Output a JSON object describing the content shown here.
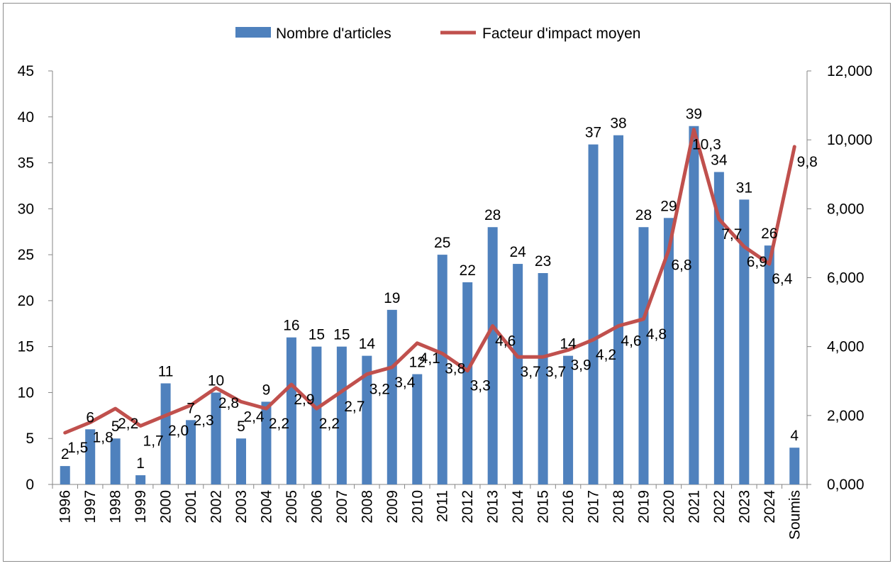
{
  "chart_data": {
    "type": "bar",
    "categories": [
      "1996",
      "1997",
      "1998",
      "1999",
      "2000",
      "2001",
      "2002",
      "2003",
      "2004",
      "2005",
      "2006",
      "2007",
      "2008",
      "2009",
      "2010",
      "2011",
      "2012",
      "2013",
      "2014",
      "2015",
      "2016",
      "2017",
      "2018",
      "2019",
      "2020",
      "2021",
      "2022",
      "2023",
      "2024",
      "Soumis"
    ],
    "series": [
      {
        "name": "Nombre d'articles",
        "type": "bar",
        "axis": "left",
        "color": "#4F81BD",
        "values": [
          2,
          6,
          5,
          1,
          11,
          7,
          10,
          5,
          9,
          16,
          15,
          15,
          14,
          19,
          12,
          25,
          22,
          28,
          24,
          23,
          14,
          37,
          38,
          28,
          29,
          39,
          34,
          31,
          26,
          4
        ],
        "labels": [
          "2",
          "6",
          "5",
          "1",
          "11",
          "7",
          "10",
          "5",
          "9",
          "16",
          "15",
          "15",
          "14",
          "19",
          "12",
          "25",
          "22",
          "28",
          "24",
          "23",
          "14",
          "37",
          "38",
          "28",
          "29",
          "39",
          "34",
          "31",
          "26",
          "4"
        ]
      },
      {
        "name": "Facteur d'impact moyen",
        "type": "line",
        "axis": "right",
        "color": "#C0504D",
        "values": [
          1.5,
          1.8,
          2.2,
          1.7,
          2.0,
          2.3,
          2.8,
          2.4,
          2.2,
          2.9,
          2.2,
          2.7,
          3.2,
          3.4,
          4.1,
          3.8,
          3.3,
          4.6,
          3.7,
          3.7,
          3.9,
          4.2,
          4.6,
          4.8,
          6.8,
          10.3,
          7.7,
          6.9,
          6.4,
          9.8
        ],
        "labels": [
          "1,5",
          "1,8",
          "2,2",
          "1,7",
          "2,0",
          "2,3",
          "2,8",
          "2,4",
          "2,2",
          "2,9",
          "2,2",
          "2,7",
          "3,2",
          "3,4",
          "4,1",
          "3,8",
          "3,3",
          "4,6",
          "3,7",
          "3,7",
          "3,9",
          "4,2",
          "4,6",
          "4,8",
          "6,8",
          "10,3",
          "7,7",
          "6,9",
          "6,4",
          "9,8"
        ]
      }
    ],
    "y_left": {
      "min": 0,
      "max": 45,
      "ticks": [
        "0",
        "5",
        "10",
        "15",
        "20",
        "25",
        "30",
        "35",
        "40",
        "45"
      ]
    },
    "y_right": {
      "min": 0,
      "max": 12,
      "ticks": [
        "0,000",
        "2,000",
        "4,000",
        "6,000",
        "8,000",
        "10,000",
        "12,000"
      ]
    },
    "grid": false,
    "legend_position": "top"
  }
}
